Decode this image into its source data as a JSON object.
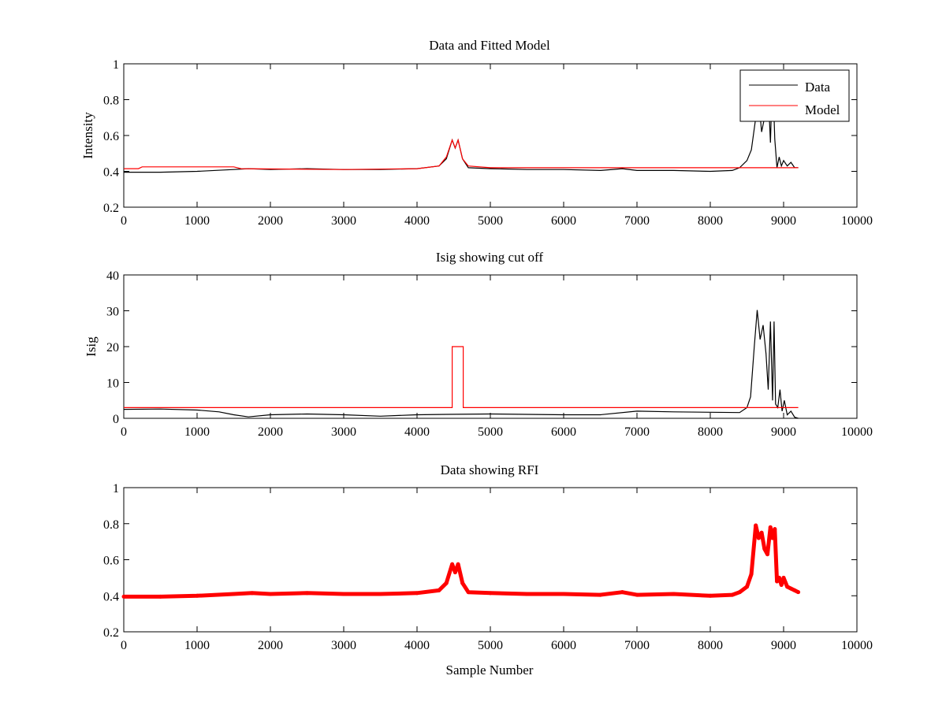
{
  "chart_data": [
    {
      "type": "line",
      "title": "Data and Fitted Model",
      "xlabel": "",
      "ylabel": "Intensity",
      "xlim": [
        0,
        10000
      ],
      "ylim": [
        0.2,
        1
      ],
      "xticks": [
        "0",
        "1000",
        "2000",
        "3000",
        "4000",
        "5000",
        "6000",
        "7000",
        "8000",
        "9000",
        "10000"
      ],
      "yticks": [
        "0.2",
        "0.4",
        "0.6",
        "0.8",
        "1"
      ],
      "legend_position": "top-right",
      "series": [
        {
          "name": "Data",
          "color": "#000000",
          "points": [
            [
              0,
              0.395
            ],
            [
              500,
              0.395
            ],
            [
              1000,
              0.4
            ],
            [
              1500,
              0.41
            ],
            [
              1700,
              0.415
            ],
            [
              2000,
              0.41
            ],
            [
              2500,
              0.415
            ],
            [
              3000,
              0.41
            ],
            [
              3500,
              0.41
            ],
            [
              4000,
              0.415
            ],
            [
              4300,
              0.43
            ],
            [
              4400,
              0.47
            ],
            [
              4480,
              0.575
            ],
            [
              4520,
              0.53
            ],
            [
              4560,
              0.575
            ],
            [
              4620,
              0.47
            ],
            [
              4700,
              0.42
            ],
            [
              5000,
              0.415
            ],
            [
              5500,
              0.41
            ],
            [
              6000,
              0.41
            ],
            [
              6500,
              0.405
            ],
            [
              6800,
              0.415
            ],
            [
              7000,
              0.405
            ],
            [
              7500,
              0.405
            ],
            [
              8000,
              0.4
            ],
            [
              8300,
              0.405
            ],
            [
              8400,
              0.42
            ],
            [
              8500,
              0.46
            ],
            [
              8560,
              0.52
            ],
            [
              8620,
              0.7
            ],
            [
              8660,
              0.8
            ],
            [
              8700,
              0.62
            ],
            [
              8740,
              0.7
            ],
            [
              8780,
              0.95
            ],
            [
              8820,
              0.56
            ],
            [
              8850,
              0.96
            ],
            [
              8880,
              0.58
            ],
            [
              8910,
              0.42
            ],
            [
              8940,
              0.48
            ],
            [
              8970,
              0.43
            ],
            [
              9000,
              0.46
            ],
            [
              9050,
              0.43
            ],
            [
              9100,
              0.45
            ],
            [
              9150,
              0.42
            ],
            [
              9200,
              0.42
            ]
          ]
        },
        {
          "name": "Model",
          "color": "#ff0000",
          "points": [
            [
              0,
              0.415
            ],
            [
              200,
              0.415
            ],
            [
              250,
              0.425
            ],
            [
              1500,
              0.425
            ],
            [
              1600,
              0.415
            ],
            [
              3000,
              0.41
            ],
            [
              4000,
              0.415
            ],
            [
              4300,
              0.43
            ],
            [
              4400,
              0.48
            ],
            [
              4480,
              0.575
            ],
            [
              4520,
              0.53
            ],
            [
              4560,
              0.575
            ],
            [
              4620,
              0.47
            ],
            [
              4700,
              0.43
            ],
            [
              5000,
              0.42
            ],
            [
              6000,
              0.42
            ],
            [
              7000,
              0.42
            ],
            [
              8000,
              0.42
            ],
            [
              9200,
              0.42
            ]
          ]
        }
      ]
    },
    {
      "type": "line",
      "title": "Isig showing cut off",
      "xlabel": "",
      "ylabel": "Isig",
      "xlim": [
        0,
        10000
      ],
      "ylim": [
        0,
        40
      ],
      "xticks": [
        "0",
        "1000",
        "2000",
        "3000",
        "4000",
        "5000",
        "6000",
        "7000",
        "8000",
        "9000",
        "10000"
      ],
      "yticks": [
        "0",
        "10",
        "20",
        "30",
        "40"
      ],
      "series": [
        {
          "color": "#000000",
          "points": [
            [
              0,
              2.5
            ],
            [
              500,
              2.6
            ],
            [
              1000,
              2.3
            ],
            [
              1300,
              1.8
            ],
            [
              1500,
              1.0
            ],
            [
              1700,
              0.4
            ],
            [
              2000,
              1.0
            ],
            [
              2500,
              1.2
            ],
            [
              3000,
              1.0
            ],
            [
              3500,
              0.6
            ],
            [
              4000,
              1.0
            ],
            [
              4400,
              1.1
            ],
            [
              5000,
              1.2
            ],
            [
              5500,
              1.1
            ],
            [
              6000,
              1.0
            ],
            [
              6500,
              1.0
            ],
            [
              7000,
              2.0
            ],
            [
              7500,
              1.8
            ],
            [
              8000,
              1.7
            ],
            [
              8400,
              1.6
            ],
            [
              8500,
              3.0
            ],
            [
              8550,
              6.0
            ],
            [
              8600,
              20.0
            ],
            [
              8640,
              30.2
            ],
            [
              8680,
              22.0
            ],
            [
              8720,
              26.0
            ],
            [
              8760,
              18.0
            ],
            [
              8790,
              8.0
            ],
            [
              8820,
              27.0
            ],
            [
              8850,
              5.0
            ],
            [
              8870,
              27.0
            ],
            [
              8890,
              4.0
            ],
            [
              8920,
              3.0
            ],
            [
              8950,
              8.0
            ],
            [
              8980,
              2.0
            ],
            [
              9010,
              5.0
            ],
            [
              9050,
              1.0
            ],
            [
              9100,
              2.0
            ],
            [
              9150,
              0.3
            ],
            [
              9200,
              0.0
            ]
          ]
        },
        {
          "color": "#ff0000",
          "points": [
            [
              0,
              3
            ],
            [
              4480,
              3
            ],
            [
              4480,
              20
            ],
            [
              4630,
              20
            ],
            [
              4630,
              3
            ],
            [
              9200,
              3
            ]
          ]
        }
      ]
    },
    {
      "type": "scatter",
      "title": "Data showing RFI",
      "xlabel": "Sample Number",
      "ylabel": "",
      "xlim": [
        0,
        10000
      ],
      "ylim": [
        0.2,
        1
      ],
      "xticks": [
        "0",
        "1000",
        "2000",
        "3000",
        "4000",
        "5000",
        "6000",
        "7000",
        "8000",
        "9000",
        "10000"
      ],
      "yticks": [
        "0.2",
        "0.4",
        "0.6",
        "0.8",
        "1"
      ],
      "series": [
        {
          "color": "#ff0000",
          "points": [
            [
              0,
              0.395
            ],
            [
              500,
              0.395
            ],
            [
              1000,
              0.4
            ],
            [
              1500,
              0.41
            ],
            [
              1750,
              0.415
            ],
            [
              2000,
              0.41
            ],
            [
              2500,
              0.415
            ],
            [
              3000,
              0.41
            ],
            [
              3500,
              0.41
            ],
            [
              4000,
              0.415
            ],
            [
              4300,
              0.43
            ],
            [
              4400,
              0.47
            ],
            [
              4480,
              0.575
            ],
            [
              4520,
              0.53
            ],
            [
              4560,
              0.575
            ],
            [
              4620,
              0.47
            ],
            [
              4700,
              0.42
            ],
            [
              5000,
              0.415
            ],
            [
              5500,
              0.41
            ],
            [
              6000,
              0.41
            ],
            [
              6500,
              0.405
            ],
            [
              6800,
              0.42
            ],
            [
              7000,
              0.405
            ],
            [
              7500,
              0.41
            ],
            [
              8000,
              0.4
            ],
            [
              8300,
              0.405
            ],
            [
              8400,
              0.42
            ],
            [
              8500,
              0.45
            ],
            [
              8560,
              0.52
            ],
            [
              8620,
              0.79
            ],
            [
              8660,
              0.72
            ],
            [
              8700,
              0.75
            ],
            [
              8740,
              0.66
            ],
            [
              8780,
              0.63
            ],
            [
              8820,
              0.78
            ],
            [
              8850,
              0.72
            ],
            [
              8880,
              0.77
            ],
            [
              8910,
              0.48
            ],
            [
              8940,
              0.5
            ],
            [
              8970,
              0.46
            ],
            [
              9000,
              0.5
            ],
            [
              9050,
              0.45
            ],
            [
              9100,
              0.44
            ],
            [
              9150,
              0.43
            ],
            [
              9200,
              0.42
            ]
          ]
        }
      ]
    }
  ]
}
